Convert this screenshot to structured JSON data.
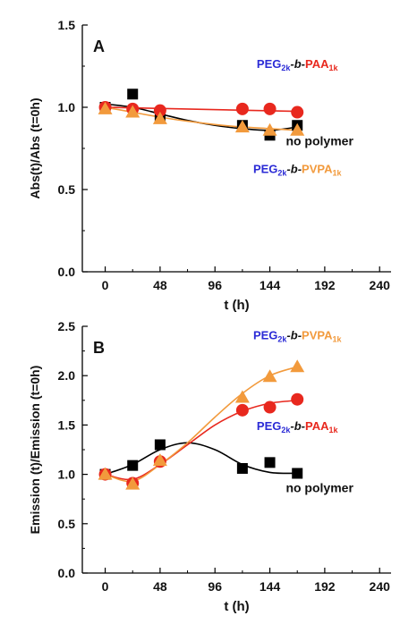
{
  "chart_data": [
    {
      "panel": "A",
      "type": "scatter",
      "xlabel": "t (h)",
      "ylabel": "Abs(t)/Abs (t=0h)",
      "xlim": [
        -20,
        250
      ],
      "ylim": [
        0.0,
        1.5
      ],
      "xticks": [
        "0",
        "48",
        "96",
        "144",
        "192",
        "240"
      ],
      "yticks": [
        "0.0",
        "0.5",
        "1.0",
        "1.5"
      ],
      "series": [
        {
          "key": "no_polymer",
          "marker": "square",
          "color": "#000000",
          "points": [
            [
              0,
              1.0
            ],
            [
              24,
              1.08
            ],
            [
              48,
              0.94
            ],
            [
              120,
              0.89
            ],
            [
              144,
              0.83
            ],
            [
              168,
              0.89
            ]
          ],
          "curve": [
            [
              0,
              1.02
            ],
            [
              24,
              1.0
            ],
            [
              48,
              0.96
            ],
            [
              72,
              0.92
            ],
            [
              96,
              0.89
            ],
            [
              120,
              0.87
            ],
            [
              144,
              0.86
            ],
            [
              168,
              0.88
            ]
          ]
        },
        {
          "key": "paa",
          "marker": "circle",
          "color": "#e8281e",
          "points": [
            [
              0,
              1.0
            ],
            [
              24,
              0.99
            ],
            [
              48,
              0.98
            ],
            [
              120,
              0.99
            ],
            [
              144,
              0.99
            ],
            [
              168,
              0.97
            ]
          ],
          "curve": [
            [
              0,
              1.0
            ],
            [
              168,
              0.975
            ]
          ]
        },
        {
          "key": "pvpa",
          "marker": "triangle",
          "color": "#f29a3c",
          "points": [
            [
              0,
              0.99
            ],
            [
              24,
              0.97
            ],
            [
              48,
              0.93
            ],
            [
              120,
              0.88
            ],
            [
              144,
              0.86
            ],
            [
              168,
              0.86
            ]
          ],
          "curve": [
            [
              0,
              1.0
            ],
            [
              24,
              0.97
            ],
            [
              48,
              0.94
            ],
            [
              72,
              0.915
            ],
            [
              96,
              0.895
            ],
            [
              120,
              0.88
            ],
            [
              144,
              0.87
            ],
            [
              168,
              0.86
            ]
          ]
        }
      ],
      "annotations": [
        {
          "key": "paa",
          "x": 168,
          "y": 1.24
        },
        {
          "key": "no_polymer_text",
          "text": "no polymer",
          "x": 158,
          "y": 0.77
        },
        {
          "key": "pvpa",
          "x": 168,
          "y": 0.6
        }
      ]
    },
    {
      "panel": "B",
      "type": "scatter",
      "xlabel": "t (h)",
      "ylabel": "Emission (t)/Emission (t=0h)",
      "xlim": [
        -20,
        250
      ],
      "ylim": [
        0.0,
        2.5
      ],
      "xticks": [
        "0",
        "48",
        "96",
        "144",
        "192",
        "240"
      ],
      "yticks": [
        "0.0",
        "0.5",
        "1.0",
        "1.5",
        "2.0",
        "2.5"
      ],
      "series": [
        {
          "key": "no_polymer",
          "marker": "square",
          "color": "#000000",
          "points": [
            [
              0,
              1.0
            ],
            [
              24,
              1.09
            ],
            [
              48,
              1.3
            ],
            [
              120,
              1.06
            ],
            [
              144,
              1.12
            ],
            [
              168,
              1.01
            ]
          ],
          "curve": [
            [
              0,
              1.0
            ],
            [
              24,
              1.1
            ],
            [
              48,
              1.25
            ],
            [
              72,
              1.32
            ],
            [
              96,
              1.25
            ],
            [
              120,
              1.1
            ],
            [
              144,
              1.02
            ],
            [
              168,
              1.01
            ]
          ]
        },
        {
          "key": "paa",
          "marker": "circle",
          "color": "#e8281e",
          "points": [
            [
              0,
              1.0
            ],
            [
              24,
              0.91
            ],
            [
              48,
              1.13
            ],
            [
              120,
              1.65
            ],
            [
              144,
              1.68
            ],
            [
              168,
              1.76
            ]
          ],
          "curve": [
            [
              0,
              1.0
            ],
            [
              24,
              0.95
            ],
            [
              48,
              1.1
            ],
            [
              72,
              1.3
            ],
            [
              96,
              1.5
            ],
            [
              120,
              1.64
            ],
            [
              144,
              1.72
            ],
            [
              168,
              1.75
            ]
          ]
        },
        {
          "key": "pvpa",
          "marker": "triangle",
          "color": "#f29a3c",
          "points": [
            [
              0,
              1.0
            ],
            [
              24,
              0.9
            ],
            [
              48,
              1.14
            ],
            [
              120,
              1.78
            ],
            [
              144,
              1.99
            ],
            [
              168,
              2.09
            ]
          ],
          "curve": [
            [
              0,
              1.0
            ],
            [
              24,
              0.93
            ],
            [
              48,
              1.1
            ],
            [
              72,
              1.32
            ],
            [
              96,
              1.58
            ],
            [
              120,
              1.82
            ],
            [
              144,
              2.0
            ],
            [
              168,
              2.09
            ]
          ]
        }
      ],
      "annotations": [
        {
          "key": "pvpa",
          "x": 168,
          "y": 2.37
        },
        {
          "key": "paa",
          "x": 168,
          "y": 1.45
        },
        {
          "key": "no_polymer_text",
          "text": "no polymer",
          "x": 158,
          "y": 0.82
        }
      ]
    }
  ],
  "figure": {
    "panel_a_label": "A",
    "panel_b_label": "B",
    "colors": {
      "prefix": "#2b2bd6",
      "paa": "#e8281e",
      "pvpa": "#f29a3c",
      "no_polymer": "#000000"
    },
    "labels": {
      "paa": {
        "prefix": "PEG",
        "prefix_sub": "2k",
        "mid": "-b-",
        "suffix": "PAA",
        "suffix_sub": "1k"
      },
      "pvpa": {
        "prefix": "PEG",
        "prefix_sub": "2k",
        "mid": "-b-",
        "suffix": "PVPA",
        "suffix_sub": "1k"
      }
    }
  }
}
